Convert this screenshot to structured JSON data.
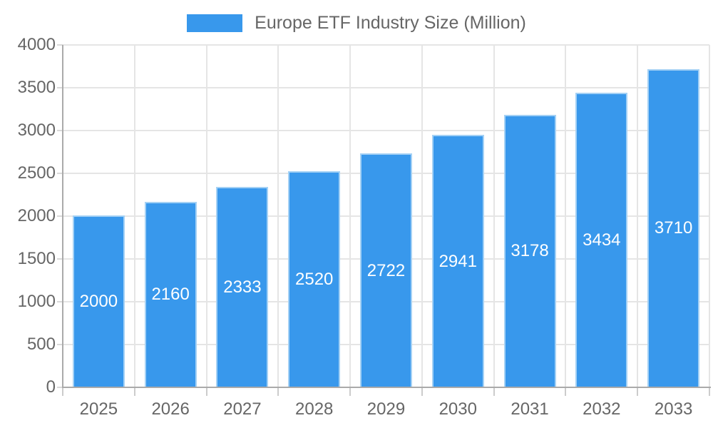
{
  "chart_data": {
    "type": "bar",
    "title": "Europe ETF Industry Size (Million)",
    "categories": [
      "2025",
      "2026",
      "2027",
      "2028",
      "2029",
      "2030",
      "2031",
      "2032",
      "2033"
    ],
    "values": [
      2000,
      2160,
      2333,
      2520,
      2722,
      2941,
      3178,
      3434,
      3710
    ],
    "xlabel": "",
    "ylabel": "",
    "ylim": [
      0,
      4000
    ],
    "yticks": [
      0,
      500,
      1000,
      1500,
      2000,
      2500,
      3000,
      3500,
      4000
    ],
    "grid": true,
    "legend_position": "top-center",
    "data_labels_inside_bars": true,
    "colors": {
      "bar_fill": "#3898EC",
      "bar_border": "#A4D1F5",
      "axis_line": "#AAAAAA",
      "grid_line": "#E5E5E5",
      "tick_line": "#CCCCCC",
      "label_text": "#666666",
      "data_label_text": "#FFFFFF",
      "background": "#FFFFFF"
    }
  }
}
